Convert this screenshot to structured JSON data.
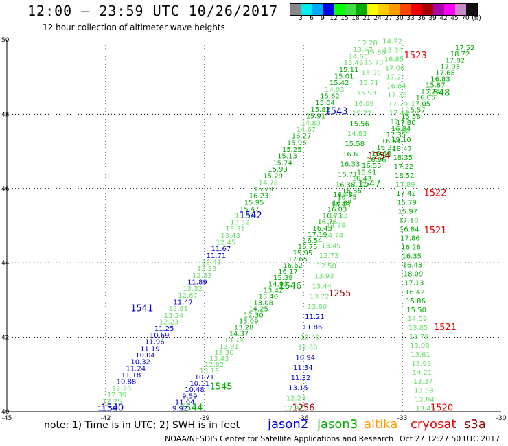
{
  "title": "12:00 – 23:59 UTC 10/26/2017",
  "subtitle": "12 hour collection of altimeter wave heights",
  "colorbar": {
    "colors": [
      "#888888",
      "#00eeee",
      "#00aaff",
      "#0000ee",
      "#00ff00",
      "#44dd44",
      "#00aa00",
      "#ffff00",
      "#ffcc00",
      "#ff9900",
      "#ff4400",
      "#ee0000",
      "#aa0000",
      "#aa00aa",
      "#ff00ff",
      "#cc88cc",
      "#111111"
    ],
    "labels": [
      "3",
      "6",
      "9",
      "12",
      "15",
      "18",
      "21",
      "24",
      "27",
      "30",
      "33",
      "36",
      "39",
      "42",
      "45",
      "70",
      "(ft)"
    ]
  },
  "note": "note:  1) Time is in UTC; 2) SWH is in feet",
  "satellites": [
    {
      "name": "jason2",
      "color": "#0000dd"
    },
    {
      "name": "jason3",
      "color": "#00aa00"
    },
    {
      "name": "altika",
      "color": "#ff9900"
    },
    {
      "name": "cryosat",
      "color": "#ee0000"
    },
    {
      "name": "s3a",
      "color": "#990000"
    }
  ],
  "credit": "NOAA/NESDIS Center for Satellite Applications and Research",
  "timestamp": "Oct 27 12:27:50 UTC 2017",
  "chart_data": {
    "type": "scatter",
    "xlim": [
      -45,
      -30
    ],
    "ylim": [
      40,
      50
    ],
    "x_ticks": [
      -45,
      -42,
      -39,
      -36,
      -33,
      -30
    ],
    "y_ticks": [
      40,
      42,
      44,
      46,
      48,
      50
    ],
    "grid": true,
    "passes": [
      {
        "time": "1540",
        "satellite": "jason2",
        "label_color": "#0000dd",
        "time_x": -41.8,
        "time_y": 40.03,
        "start": [
          -41.95,
          40.03
        ],
        "end": [
          -34.05,
          49.85
        ],
        "heights": [
          11.5,
          12.25,
          12.39,
          12.76,
          10.88,
          11.18,
          11.24,
          10.32,
          10.04,
          11.19,
          11.96,
          10.69,
          11.25,
          12.23,
          13.24,
          12.81,
          11.47,
          12.67,
          13.32,
          11.89,
          12.33,
          13.23,
          12.41,
          11.71,
          11.67,
          12.45,
          13.43,
          13.31,
          13.52,
          13.92,
          15.47,
          15.95,
          16.23,
          15.79,
          14.78,
          15.29,
          15.93,
          15.74,
          15.13,
          15.25,
          15.96,
          16.27,
          14.67,
          14.83,
          15.91,
          15.82,
          15.04,
          15.62,
          14.03,
          15.42,
          15.01,
          15.11,
          13.49,
          14.65,
          13.47,
          12.28
        ],
        "colors": [
          "#0000dd",
          "#66dd66",
          "#66dd66",
          "#66dd66",
          "#0000dd",
          "#0000dd",
          "#0000dd",
          "#0000dd",
          "#0000dd",
          "#0000dd",
          "#0000dd",
          "#0000dd",
          "#0000dd",
          "#66dd66",
          "#66dd66",
          "#66dd66",
          "#0000dd",
          "#66dd66",
          "#66dd66",
          "#0000dd",
          "#66dd66",
          "#66dd66",
          "#66dd66",
          "#0000dd",
          "#0000dd",
          "#66dd66",
          "#66dd66",
          "#66dd66",
          "#66dd66",
          "#66dd66",
          "#00aa00",
          "#00aa00",
          "#00aa00",
          "#00aa00",
          "#66dd66",
          "#00aa00",
          "#00aa00",
          "#00aa00",
          "#00aa00",
          "#00aa00",
          "#00aa00",
          "#00aa00",
          "#66dd66",
          "#66dd66",
          "#00aa00",
          "#00aa00",
          "#00aa00",
          "#00aa00",
          "#66dd66",
          "#00aa00",
          "#00aa00",
          "#00aa00",
          "#66dd66",
          "#66dd66",
          "#66dd66",
          "#66dd66"
        ]
      },
      {
        "time": "1541",
        "satellite": "jason2",
        "label_color": "#0000dd",
        "time_x": -40.9,
        "time_y": 42.7,
        "start": null,
        "end": null,
        "heights": [],
        "colors": []
      },
      {
        "time": "1542",
        "satellite": "jason2",
        "label_color": "#0000dd",
        "time_x": -37.6,
        "time_y": 45.2,
        "start": null,
        "end": null,
        "heights": [],
        "colors": []
      },
      {
        "time": "1543",
        "satellite": "jason2",
        "label_color": "#0000dd",
        "time_x": -35.0,
        "time_y": 48.0,
        "start": null,
        "end": null,
        "heights": [],
        "colors": []
      },
      {
        "time": "1544",
        "satellite": "jason3",
        "label_color": "#00aa00",
        "time_x": -39.4,
        "time_y": 40.03,
        "start": [
          -39.75,
          40.03
        ],
        "end": [
          -31.1,
          49.72
        ],
        "heights": [
          9.92,
          11.04,
          9.59,
          10.48,
          10.11,
          10.71,
          13.15,
          12.82,
          13.43,
          13.3,
          13.91,
          13.74,
          14.37,
          13.28,
          13.09,
          12.3,
          14.25,
          13.08,
          13.4,
          13.42,
          14.93,
          15.39,
          16.17,
          16.62,
          17.65,
          15.95,
          16.75,
          16.54,
          17.19,
          16.43,
          16.76,
          16.73,
          16.03,
          16.87,
          16.45,
          16.36,
          17.17,
          16.43,
          16.91,
          16.55,
          16.96,
          16.68,
          16.23,
          16.61,
          17.35,
          16.84,
          17.3,
          15.58,
          15.57,
          17.05,
          16.05,
          16.24,
          15.87,
          16.83,
          17.68,
          17.93,
          17.82,
          18.72,
          17.52
        ],
        "colors": [
          "#0000dd",
          "#0000dd",
          "#0000dd",
          "#0000dd",
          "#0000dd",
          "#0000dd",
          "#66dd66",
          "#66dd66",
          "#66dd66",
          "#66dd66",
          "#66dd66",
          "#66dd66",
          "#00aa00",
          "#00aa00",
          "#00aa00",
          "#00aa00",
          "#00aa00",
          "#00aa00",
          "#00aa00",
          "#00aa00",
          "#00aa00",
          "#00aa00",
          "#00aa00",
          "#00aa00",
          "#00aa00",
          "#00aa00",
          "#00aa00",
          "#00aa00",
          "#00aa00",
          "#00aa00",
          "#00aa00",
          "#00aa00",
          "#00aa00",
          "#00aa00",
          "#00aa00",
          "#00aa00",
          "#00aa00",
          "#00aa00",
          "#00aa00",
          "#00aa00",
          "#00aa00",
          "#00aa00",
          "#00aa00",
          "#00aa00",
          "#00aa00",
          "#00aa00",
          "#00aa00",
          "#00aa00",
          "#00aa00",
          "#00aa00",
          "#00aa00",
          "#00aa00",
          "#00aa00",
          "#00aa00",
          "#00aa00",
          "#00aa00",
          "#00aa00",
          "#00aa00",
          "#00aa00"
        ]
      },
      {
        "time": "1545",
        "satellite": "jason3",
        "label_color": "#00aa00",
        "time_x": -38.5,
        "time_y": 40.6,
        "start": null,
        "end": null,
        "heights": [],
        "colors": []
      },
      {
        "time": "1546",
        "satellite": "jason3",
        "label_color": "#00aa00",
        "time_x": -36.4,
        "time_y": 43.3,
        "start": null,
        "end": null,
        "heights": [],
        "colors": []
      },
      {
        "time": "1547",
        "satellite": "jason3",
        "label_color": "#00aa00",
        "time_x": -34.0,
        "time_y": 46.05,
        "start": null,
        "end": null,
        "heights": [],
        "colors": []
      },
      {
        "time": "1548",
        "satellite": "jason3",
        "label_color": "#00aa00",
        "time_x": -31.9,
        "time_y": 48.5,
        "start": null,
        "end": null,
        "heights": [],
        "colors": []
      },
      {
        "time": "1256",
        "satellite": "s3a",
        "label_color": "#990000",
        "time_x": -36.0,
        "time_y": 40.03,
        "start": [
          -36.3,
          40.03
        ],
        "end": [
          -33.8,
          49.6
        ],
        "heights": [
          12.92,
          12.24,
          13.15,
          11.32,
          11.34,
          10.94,
          12.68,
          12.49,
          11.86,
          11.21,
          13.8,
          13.72,
          13.44,
          13.93,
          12.5,
          13.73,
          13.49,
          14.74,
          14.29,
          14.85,
          16.13,
          16.48,
          16.38,
          15.71,
          16.33,
          16.61,
          15.58,
          14.83,
          15.56,
          15.72,
          16.09,
          15.93,
          15.71,
          15.99,
          15.73,
          15.88
        ],
        "colors": [
          "#66dd66",
          "#66dd66",
          "#0000dd",
          "#0000dd",
          "#0000dd",
          "#0000dd",
          "#66dd66",
          "#66dd66",
          "#0000dd",
          "#0000dd",
          "#66dd66",
          "#66dd66",
          "#66dd66",
          "#66dd66",
          "#66dd66",
          "#66dd66",
          "#66dd66",
          "#66dd66",
          "#66dd66",
          "#66dd66",
          "#00aa00",
          "#00aa00",
          "#00aa00",
          "#00aa00",
          "#00aa00",
          "#00aa00",
          "#00aa00",
          "#66dd66",
          "#00aa00",
          "#66dd66",
          "#66dd66",
          "#66dd66",
          "#66dd66",
          "#66dd66",
          "#66dd66",
          "#66dd66"
        ]
      },
      {
        "time": "1255",
        "satellite": "s3a",
        "label_color": "#990000",
        "time_x": -34.9,
        "time_y": 43.1,
        "start": null,
        "end": null,
        "heights": [],
        "colors": []
      },
      {
        "time": "1254",
        "satellite": "s3a",
        "label_color": "#990000",
        "time_x": -33.7,
        "time_y": 46.8,
        "start": null,
        "end": null,
        "heights": [],
        "colors": []
      },
      {
        "time": "1520",
        "satellite": "cryosat",
        "label_color": "#ee0000",
        "time_x": -31.8,
        "time_y": 40.03,
        "start": [
          -32.3,
          40.03
        ],
        "end": [
          -33.3,
          49.9
        ],
        "heights": [
          13.45,
          12.84,
          13.59,
          13.37,
          14.21,
          13.99,
          13.61,
          13.08,
          13.79,
          13.85,
          14.59,
          15.5,
          15.86,
          16.42,
          17.13,
          18.09,
          16.43,
          16.35,
          16.28,
          17.86,
          16.84,
          17.18,
          15.97,
          15.79,
          17.42,
          17.89,
          18.52,
          17.22,
          18.35,
          18.47,
          19.1,
          17.82,
          17.97,
          17.44,
          17.79,
          17.35,
          16.84,
          17.24,
          17.0,
          16.85,
          15.34,
          14.72
        ],
        "colors": [
          "#66dd66",
          "#66dd66",
          "#66dd66",
          "#66dd66",
          "#66dd66",
          "#66dd66",
          "#66dd66",
          "#66dd66",
          "#66dd66",
          "#66dd66",
          "#66dd66",
          "#00aa00",
          "#00aa00",
          "#00aa00",
          "#00aa00",
          "#00aa00",
          "#00aa00",
          "#00aa00",
          "#00aa00",
          "#00aa00",
          "#00aa00",
          "#00aa00",
          "#00aa00",
          "#00aa00",
          "#00aa00",
          "#66dd66",
          "#00aa00",
          "#00aa00",
          "#00aa00",
          "#00aa00",
          "#00aa00",
          "#66dd66",
          "#66dd66",
          "#66dd66",
          "#66dd66",
          "#66dd66",
          "#66dd66",
          "#66dd66",
          "#66dd66",
          "#66dd66",
          "#66dd66",
          "#66dd66"
        ]
      },
      {
        "time": "1521",
        "satellite": "cryosat",
        "label_color": "#ee0000",
        "time_x": -31.7,
        "time_y": 42.2,
        "start": null,
        "end": null,
        "heights": [],
        "colors": []
      },
      {
        "time": "1521",
        "satellite": "cryosat",
        "label_color": "#ee0000",
        "time_x": -32.0,
        "time_y": 44.8,
        "start": null,
        "end": null,
        "heights": [],
        "colors": []
      },
      {
        "time": "1522",
        "satellite": "cryosat",
        "label_color": "#ee0000",
        "time_x": -32.0,
        "time_y": 45.8,
        "start": null,
        "end": null,
        "heights": [],
        "colors": []
      },
      {
        "time": "1523",
        "satellite": "cryosat",
        "label_color": "#ee0000",
        "time_x": -32.6,
        "time_y": 49.5,
        "start": null,
        "end": null,
        "heights": [],
        "colors": []
      }
    ]
  }
}
